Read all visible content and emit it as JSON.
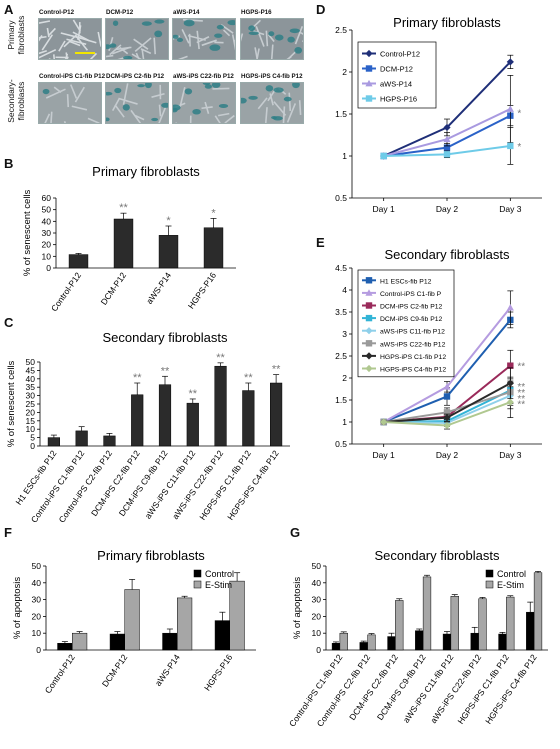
{
  "panelA": {
    "label": "A",
    "row_labels": [
      "Primary\nfibroblasts",
      "Secondary-\nfibroblasts"
    ],
    "row1_titles": [
      "Control-P12",
      "DCM-P12",
      "aWS-P14",
      "HGPS-P16"
    ],
    "row2_titles": [
      "Control-iPS C1-fib P12",
      "DCM-iPS C2-fib P12",
      "aWS-iPS C22-fib P12",
      "HGPS-iPS C4-fib P12"
    ]
  },
  "chart_data": [
    {
      "id": "B",
      "type": "bar",
      "title": "Primary fibroblasts",
      "ylabel": "% of senescent cells",
      "ylim": [
        0,
        60
      ],
      "yticks": [
        0,
        10,
        20,
        30,
        40,
        50,
        60
      ],
      "categories": [
        "Control-P12",
        "DCM-P12",
        "aWS-P14",
        "HGPS-P16"
      ],
      "values": [
        11.5,
        42,
        28,
        34.5
      ],
      "errors": [
        1,
        5,
        8,
        8
      ],
      "annotations": [
        "",
        "**",
        "*",
        "*"
      ]
    },
    {
      "id": "C",
      "type": "bar",
      "title": "Secondary fibroblasts",
      "ylabel": "% of senescent cells",
      "ylim": [
        0,
        50
      ],
      "yticks": [
        0,
        5,
        10,
        15,
        20,
        25,
        30,
        35,
        40,
        45,
        50
      ],
      "categories": [
        "H1 ESCs-fib P12",
        "Control-iPS C1-fib P12",
        "Control-iPS C2-fib P12",
        "DCM-iPS C2-fib P12",
        "DCM-iPS C9-fib P12",
        "aWS-iPS C11-fib P12",
        "aWS-iPS C22-fib P12",
        "HGPS-iPS C1-fib P12",
        "HGPS-iPS C4-fib P12"
      ],
      "values": [
        5,
        9,
        6,
        30.5,
        36.5,
        25.5,
        47.5,
        33,
        37.5
      ],
      "errors": [
        1.5,
        2.5,
        1.5,
        7,
        5,
        2.5,
        2,
        4.5,
        5
      ],
      "annotations": [
        "",
        "",
        "",
        "**",
        "**",
        "**",
        "**",
        "**",
        "**"
      ]
    },
    {
      "id": "D",
      "type": "line",
      "title": "Primary fibroblasts",
      "categories": [
        "Day 1",
        "Day 2",
        "Day 3"
      ],
      "ylim": [
        0.5,
        2.5
      ],
      "yticks": [
        0.5,
        1,
        1.5,
        2,
        2.5
      ],
      "series": [
        {
          "name": "Control-P12",
          "color": "#1f2f78",
          "marker": "diamond",
          "values": [
            1,
            1.34,
            2.12
          ],
          "errors": [
            0,
            0.1,
            0.08
          ]
        },
        {
          "name": "DCM-P12",
          "color": "#2a62c8",
          "marker": "square",
          "values": [
            1,
            1.1,
            1.48
          ],
          "errors": [
            0,
            0.05,
            0.12
          ]
        },
        {
          "name": "aWS-P14",
          "color": "#a99ae0",
          "marker": "triangle",
          "values": [
            1,
            1.2,
            1.56
          ],
          "errors": [
            0,
            0.08,
            0.4
          ]
        },
        {
          "name": "HGPS-P16",
          "color": "#6ecbe8",
          "marker": "square",
          "values": [
            1,
            1.02,
            1.12
          ],
          "errors": [
            0,
            0.04,
            0.22
          ]
        }
      ],
      "annotations": [
        {
          "text": "*",
          "x": "Day 3",
          "y": 1.52
        },
        {
          "text": "*",
          "x": "Day 3",
          "y": 1.12
        }
      ]
    },
    {
      "id": "E",
      "type": "line",
      "title": "Secondary fibroblasts",
      "categories": [
        "Day 1",
        "Day 2",
        "Day 3"
      ],
      "ylim": [
        0.5,
        4.5
      ],
      "yticks": [
        0.5,
        1,
        1.5,
        2,
        2.5,
        3,
        3.5,
        4,
        4.5
      ],
      "series": [
        {
          "name": "H1 ESCs-fib P12",
          "color": "#1f5fb0",
          "marker": "square",
          "values": [
            1,
            1.58,
            3.32
          ],
          "errors": [
            0,
            0.2,
            0.18
          ]
        },
        {
          "name": "Control-iPS C1-fib P",
          "color": "#b59ce0",
          "marker": "triangle",
          "values": [
            1,
            1.8,
            3.6
          ],
          "errors": [
            0,
            0.12,
            0.38
          ]
        },
        {
          "name": "DCM-iPS C2-fib P12",
          "color": "#9a2a5a",
          "marker": "square",
          "values": [
            1,
            1.12,
            2.28
          ],
          "errors": [
            0,
            0.1,
            0.35
          ]
        },
        {
          "name": "DCM-iPS C9-fib P12",
          "color": "#32b4d6",
          "marker": "square",
          "values": [
            1,
            1.02,
            1.72
          ],
          "errors": [
            0,
            0.08,
            0.3
          ]
        },
        {
          "name": "aWS-iPS C11-fib P12",
          "color": "#8fd0ea",
          "marker": "diamond",
          "values": [
            1,
            0.98,
            1.6
          ],
          "errors": [
            0,
            0.08,
            0.3
          ]
        },
        {
          "name": "aWS-iPS C22-fib P12",
          "color": "#9a9a9a",
          "marker": "square",
          "values": [
            1,
            1.22,
            1.68
          ],
          "errors": [
            0,
            0.1,
            0.3
          ]
        },
        {
          "name": "HGPS-iPS C1-fib P12",
          "color": "#2a2a2a",
          "marker": "diamond",
          "values": [
            1,
            1.1,
            1.88
          ],
          "errors": [
            0,
            0.08,
            0.35
          ]
        },
        {
          "name": "HGPS-iPS C4-fib P12",
          "color": "#b0c890",
          "marker": "diamond",
          "values": [
            1,
            0.92,
            1.45
          ],
          "errors": [
            0,
            0.08,
            0.35
          ]
        }
      ],
      "annotations": [
        {
          "text": "**",
          "x": "Day 3",
          "y": 2.28
        },
        {
          "text": "**",
          "x": "Day 3",
          "y": 1.82
        },
        {
          "text": "**",
          "x": "Day 3",
          "y": 1.68
        },
        {
          "text": "**",
          "x": "Day 3",
          "y": 1.55
        },
        {
          "text": "**",
          "x": "Day 3",
          "y": 1.42
        }
      ]
    },
    {
      "id": "F",
      "type": "bar",
      "title": "Primary fibroblasts",
      "ylabel": "% of apoptosis",
      "ylim": [
        0,
        50
      ],
      "yticks": [
        0,
        10,
        20,
        30,
        40,
        50
      ],
      "categories": [
        "Control-P12",
        "DCM-P12",
        "aWS-P14",
        "HGPS-P16"
      ],
      "series": [
        {
          "name": "Control",
          "color": "#000000",
          "values": [
            4,
            9.5,
            10,
            17.5
          ],
          "errors": [
            1,
            1.5,
            2.5,
            5
          ]
        },
        {
          "name": "E-Stim",
          "color": "#a6a6a6",
          "values": [
            10,
            36,
            31,
            41
          ],
          "errors": [
            1,
            6,
            1,
            5
          ]
        }
      ]
    },
    {
      "id": "G",
      "type": "bar",
      "title": "Secondary fibroblasts",
      "ylabel": "% of apoptosis",
      "ylim": [
        0,
        50
      ],
      "yticks": [
        0,
        10,
        20,
        30,
        40,
        50
      ],
      "categories": [
        "Control-iPS C1-fib P12",
        "Control-iPS C2-fib P12",
        "DCM-iPS C2-fib P12",
        "DCM-iPS C9-fib P12",
        "aWS-iPS C11-fib P12",
        "aWS-iPS C22-fib P12",
        "HGPS-iPS C1-fib P12",
        "HGPS-iPS C4-fib P12"
      ],
      "series": [
        {
          "name": "Control",
          "color": "#000000",
          "values": [
            4,
            4.5,
            8,
            11.5,
            9.5,
            10,
            9.5,
            22.5
          ],
          "errors": [
            0.8,
            0.8,
            2,
            1,
            1.5,
            3.5,
            1,
            6
          ]
        },
        {
          "name": "E-Stim",
          "color": "#a6a6a6",
          "values": [
            10,
            9,
            29.5,
            43.5,
            32,
            30.5,
            31.5,
            46
          ],
          "errors": [
            0.8,
            0.8,
            1,
            1,
            1,
            0.8,
            0.8,
            0.8
          ]
        }
      ]
    }
  ],
  "panel_letters": {
    "B": "B",
    "C": "C",
    "D": "D",
    "E": "E",
    "F": "F",
    "G": "G"
  }
}
